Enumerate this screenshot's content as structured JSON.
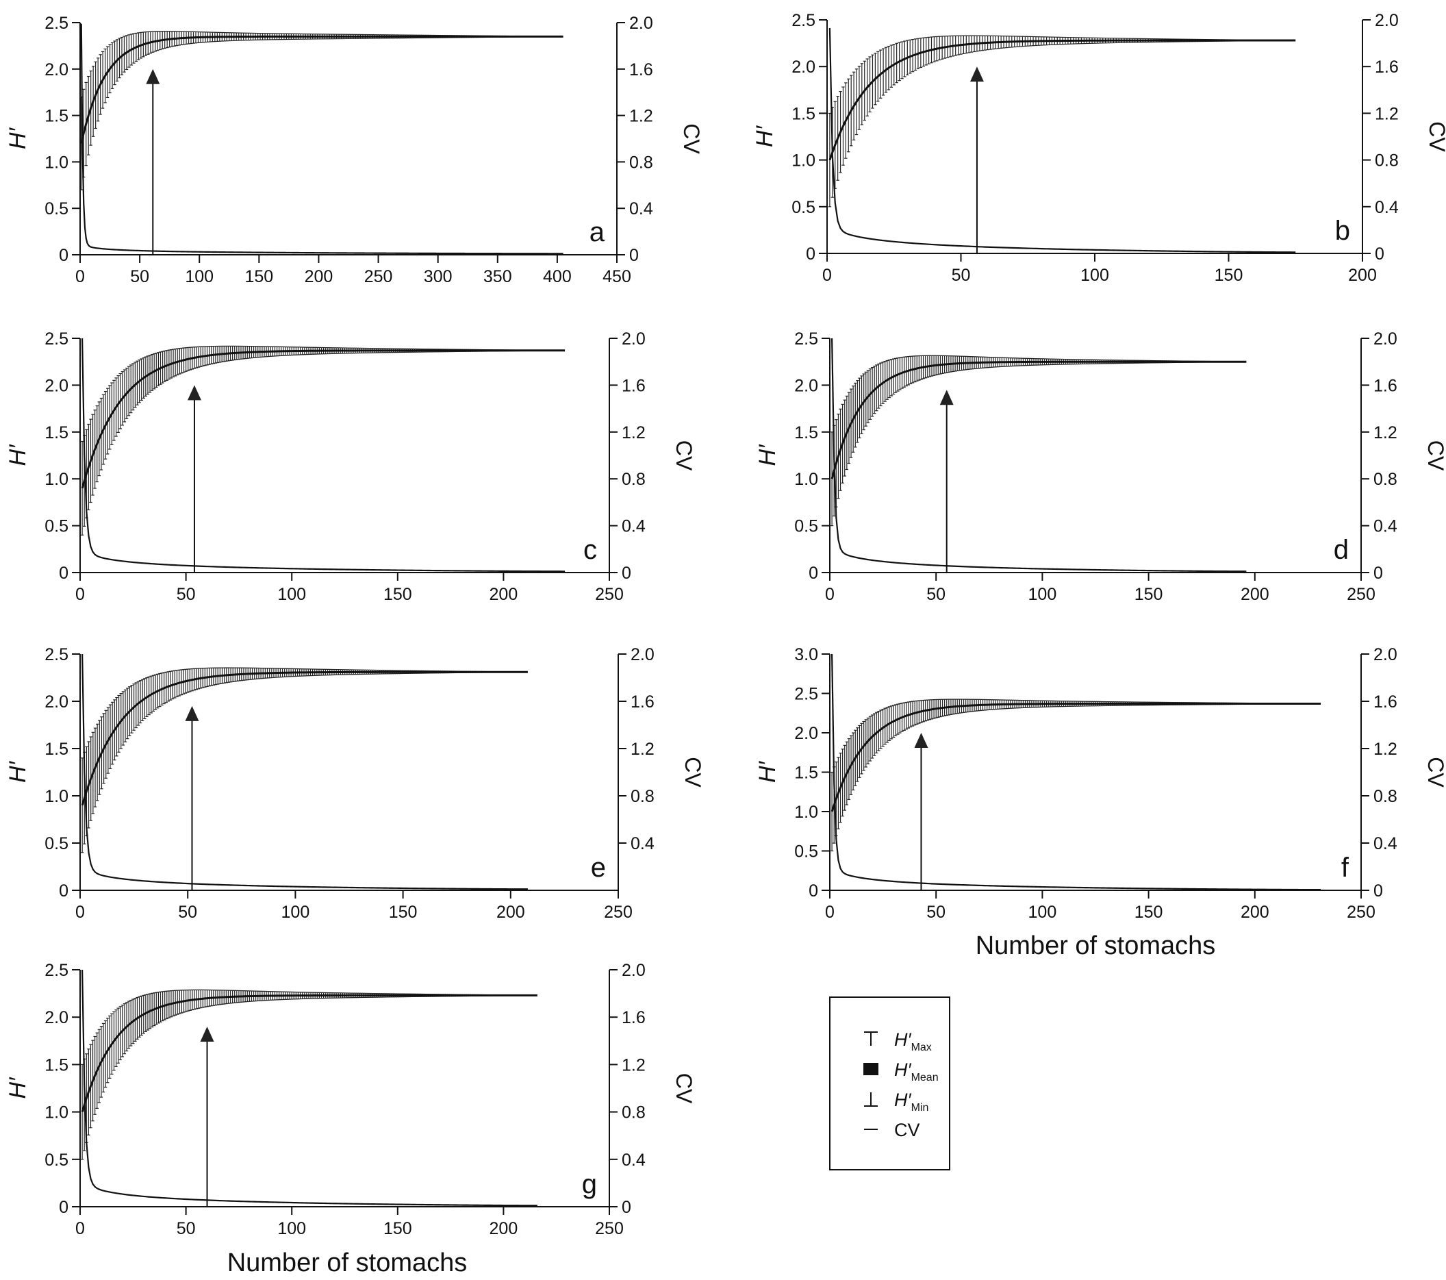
{
  "figure": {
    "xlabel": "Number of stomachs",
    "legend": {
      "placement": "bottom-right",
      "items": [
        {
          "symbol": "cap-top",
          "label_main": "H′",
          "label_sub": "Max"
        },
        {
          "symbol": "filled-square",
          "label_main": "H′",
          "label_sub": "Mean"
        },
        {
          "symbol": "cap-bottom",
          "label_main": "H′",
          "label_sub": "Min"
        },
        {
          "symbol": "line",
          "label_main": "CV",
          "label_sub": ""
        }
      ]
    }
  },
  "chart_data": [
    {
      "type": "line",
      "panel_label": "a",
      "ylabel": "H′",
      "y2label": "CV",
      "xlim": [
        0,
        450
      ],
      "xticks": [
        0,
        50,
        100,
        150,
        200,
        250,
        300,
        350,
        400,
        450
      ],
      "ylim": [
        0,
        2.5
      ],
      "yticks": [
        0,
        0.5,
        1.0,
        1.5,
        2.0,
        2.5
      ],
      "y2lim": [
        0,
        2.0
      ],
      "y2ticks": [
        0,
        0.4,
        0.8,
        1.2,
        1.6,
        2.0
      ],
      "n_max": 405,
      "h_final": 2.35,
      "h_start": 1.2,
      "h_tau": 20,
      "err_tau": 35,
      "cv_start": 1.9,
      "cv_tau": 1.2,
      "cv_tail": 0.08,
      "cv_end": 0.01,
      "arrow_x": 61,
      "arrow_tip_y": 2.0
    },
    {
      "type": "line",
      "panel_label": "b",
      "ylabel": "H′",
      "y2label": "CV",
      "xlim": [
        0,
        200
      ],
      "xticks": [
        0,
        50,
        100,
        150,
        200
      ],
      "ylim": [
        0,
        2.5
      ],
      "yticks": [
        0,
        0.5,
        1.0,
        1.5,
        2.0,
        2.5
      ],
      "y2lim": [
        0,
        2.0
      ],
      "y2ticks": [
        0,
        0.4,
        0.8,
        1.2,
        1.6,
        2.0
      ],
      "n_max": 175,
      "h_final": 2.28,
      "h_start": 1.0,
      "h_tau": 15,
      "err_tau": 30,
      "cv_start": 1.7,
      "cv_tau": 1.0,
      "cv_tail": 0.22,
      "cv_end": 0.01,
      "arrow_x": 56,
      "arrow_tip_y": 2.0
    },
    {
      "type": "line",
      "panel_label": "c",
      "ylabel": "H′",
      "y2label": "CV",
      "xlim": [
        0,
        250
      ],
      "xticks": [
        0,
        50,
        100,
        150,
        200,
        250
      ],
      "ylim": [
        0,
        2.5
      ],
      "yticks": [
        0,
        0.5,
        1.0,
        1.5,
        2.0,
        2.5
      ],
      "y2lim": [
        0,
        2.0
      ],
      "y2ticks": [
        0,
        0.4,
        0.8,
        1.2,
        1.6,
        2.0
      ],
      "n_max": 229,
      "h_final": 2.37,
      "h_start": 0.9,
      "h_tau": 18,
      "err_tau": 35,
      "cv_start": 1.9,
      "cv_tau": 1.2,
      "cv_tail": 0.18,
      "cv_end": 0.01,
      "arrow_x": 54,
      "arrow_tip_y": 2.0
    },
    {
      "type": "line",
      "panel_label": "d",
      "ylabel": "H′",
      "y2label": "CV",
      "xlim": [
        0,
        250
      ],
      "xticks": [
        0,
        50,
        100,
        150,
        200,
        250
      ],
      "ylim": [
        0,
        2.5
      ],
      "yticks": [
        0,
        0.5,
        1.0,
        1.5,
        2.0,
        2.5
      ],
      "y2lim": [
        0,
        2.0
      ],
      "y2ticks": [
        0,
        0.4,
        0.8,
        1.2,
        1.6,
        2.0
      ],
      "n_max": 196,
      "h_final": 2.25,
      "h_start": 1.0,
      "h_tau": 14,
      "err_tau": 30,
      "cv_start": 2.1,
      "cv_tau": 1.0,
      "cv_tail": 0.2,
      "cv_end": 0.01,
      "arrow_x": 55,
      "arrow_tip_y": 1.95
    },
    {
      "type": "line",
      "panel_label": "e",
      "ylabel": "H′",
      "y2label": "CV",
      "xlim": [
        0,
        250
      ],
      "xticks": [
        0,
        50,
        100,
        150,
        200,
        250
      ],
      "ylim": [
        0,
        2.5
      ],
      "yticks": [
        0,
        0.5,
        1.0,
        1.5,
        2.0,
        2.5
      ],
      "y2lim": [
        0,
        2.0
      ],
      "y2ticks": [
        0.4,
        0.8,
        1.2,
        1.6,
        2.0
      ],
      "n_max": 208,
      "h_final": 2.31,
      "h_start": 0.9,
      "h_tau": 18,
      "err_tau": 35,
      "cv_start": 1.9,
      "cv_tau": 1.2,
      "cv_tail": 0.18,
      "cv_end": 0.01,
      "arrow_x": 52,
      "arrow_tip_y": 1.95
    },
    {
      "type": "line",
      "panel_label": "f",
      "ylabel": "H′",
      "y2label": "CV",
      "xlim": [
        0,
        250
      ],
      "xticks": [
        0,
        50,
        100,
        150,
        200,
        250
      ],
      "ylim": [
        0,
        3.0
      ],
      "yticks": [
        0,
        0.5,
        1.0,
        1.5,
        2.0,
        2.5,
        3.0
      ],
      "y2lim": [
        0,
        2.0
      ],
      "y2ticks": [
        0,
        0.4,
        0.8,
        1.2,
        1.6,
        2.0
      ],
      "n_max": 231,
      "h_final": 2.37,
      "h_start": 1.0,
      "h_tau": 16,
      "err_tau": 32,
      "cv_start": 2.0,
      "cv_tau": 1.0,
      "cv_tail": 0.18,
      "cv_end": 0.005,
      "arrow_x": 43,
      "arrow_tip_y": 2.0
    },
    {
      "type": "line",
      "panel_label": "g",
      "ylabel": "H′",
      "y2label": "CV",
      "xlim": [
        0,
        250
      ],
      "xticks": [
        0,
        50,
        100,
        150,
        200,
        250
      ],
      "ylim": [
        0,
        2.5
      ],
      "yticks": [
        0,
        0.5,
        1.0,
        1.5,
        2.0,
        2.5
      ],
      "y2lim": [
        0,
        2.0
      ],
      "y2ticks": [
        0,
        0.4,
        0.8,
        1.2,
        1.6,
        2.0
      ],
      "n_max": 216,
      "h_final": 2.23,
      "h_start": 1.0,
      "h_tau": 16,
      "err_tau": 32,
      "cv_start": 1.9,
      "cv_tau": 1.2,
      "cv_tail": 0.2,
      "cv_end": 0.01,
      "arrow_x": 60,
      "arrow_tip_y": 1.9
    }
  ]
}
